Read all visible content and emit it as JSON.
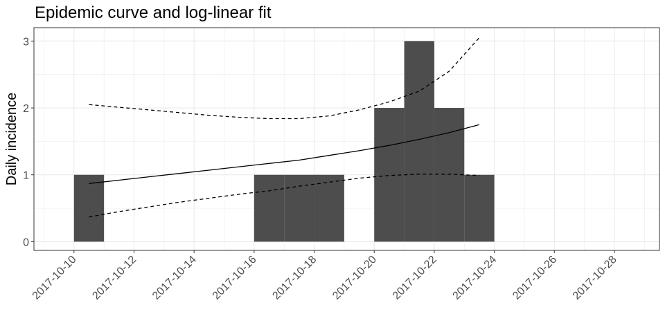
{
  "chart_data": {
    "type": "bar",
    "title": "Epidemic curve and log-linear fit",
    "xlabel": "",
    "ylabel": "Daily incidence",
    "x_ticks": [
      "2017-10-10",
      "2017-10-12",
      "2017-10-14",
      "2017-10-16",
      "2017-10-18",
      "2017-10-20",
      "2017-10-22",
      "2017-10-24",
      "2017-10-26",
      "2017-10-28"
    ],
    "y_ticks": [
      "0",
      "1",
      "2",
      "3"
    ],
    "xlim": [
      "2017-10-08T16:00",
      "2017-10-29T12:00"
    ],
    "ylim": [
      -0.13,
      3.2
    ],
    "grid": true,
    "bars": [
      {
        "date": "2017-10-10",
        "value": 1
      },
      {
        "date": "2017-10-11",
        "value": 0
      },
      {
        "date": "2017-10-12",
        "value": 0
      },
      {
        "date": "2017-10-13",
        "value": 0
      },
      {
        "date": "2017-10-14",
        "value": 0
      },
      {
        "date": "2017-10-15",
        "value": 0
      },
      {
        "date": "2017-10-16",
        "value": 1
      },
      {
        "date": "2017-10-17",
        "value": 1
      },
      {
        "date": "2017-10-18",
        "value": 1
      },
      {
        "date": "2017-10-19",
        "value": 0
      },
      {
        "date": "2017-10-20",
        "value": 2
      },
      {
        "date": "2017-10-21",
        "value": 3
      },
      {
        "date": "2017-10-22",
        "value": 2
      },
      {
        "date": "2017-10-23",
        "value": 1
      }
    ],
    "bar_color": "#4d4d4d",
    "fit": {
      "x": [
        "2017-10-10T12:00",
        "2017-10-11T12:00",
        "2017-10-12T12:00",
        "2017-10-13T12:00",
        "2017-10-14T12:00",
        "2017-10-15T12:00",
        "2017-10-16T12:00",
        "2017-10-17T12:00",
        "2017-10-18T12:00",
        "2017-10-19T12:00",
        "2017-10-20T12:00",
        "2017-10-21T12:00",
        "2017-10-22T12:00",
        "2017-10-23T12:00"
      ],
      "fitted": [
        0.87,
        0.92,
        0.97,
        1.02,
        1.07,
        1.12,
        1.17,
        1.22,
        1.29,
        1.36,
        1.44,
        1.53,
        1.63,
        1.75
      ],
      "lower": [
        0.37,
        0.45,
        0.52,
        0.59,
        0.65,
        0.71,
        0.76,
        0.83,
        0.89,
        0.95,
        0.99,
        1.01,
        1.01,
        0.99
      ],
      "upper": [
        2.05,
        2.01,
        1.97,
        1.93,
        1.89,
        1.86,
        1.84,
        1.84,
        1.88,
        1.97,
        2.09,
        2.25,
        2.55,
        3.05
      ]
    }
  }
}
